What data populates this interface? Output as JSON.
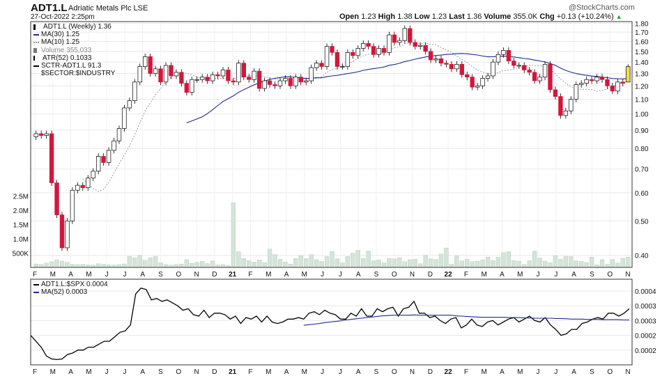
{
  "header": {
    "symbol": "ADT1.L",
    "company": "Adriatic Metals Plc LSE",
    "date": "27-Oct-2022 2:25pm",
    "quote": {
      "open_label": "Open",
      "open": "1.23",
      "high_label": "High",
      "high": "1.38",
      "low_label": "Low",
      "low": "1.23",
      "last_label": "Last",
      "last": "1.36",
      "volume_label": "Volume",
      "volume": "355.0K",
      "chg_label": "Chg",
      "chg": "+0.13 (+10.24%)"
    },
    "brand": "@StockCharts.com"
  },
  "legend_main": [
    {
      "text": "ADT1.L (Weekly) 1.36",
      "swatch": "candle"
    },
    {
      "text": "MA(30) 1.25",
      "swatch": "line-navy"
    },
    {
      "text": "MA(10) 1.25",
      "swatch": "dotted-gray"
    },
    {
      "text": "Volume 355,033",
      "swatch": "volume"
    },
    {
      "text": "ATR(52) 0.1033",
      "swatch": "bar"
    },
    {
      "text": "SCTR-ADT1.L 91.3",
      "swatch": "line-black"
    },
    {
      "text": "$SECTOR:$INDUSTRY",
      "swatch": "none"
    }
  ],
  "legend_lower": [
    {
      "text": "ADT1.L:$SPX 0.0004",
      "swatch": "line-black"
    },
    {
      "text": "MA(52) 0.0003",
      "swatch": "line-navy"
    }
  ],
  "colors": {
    "up": "#ffffff",
    "down": "#d4163c",
    "last": "#f5dc4a",
    "ma30": "#1f2a8a",
    "ma10": "#9e9e9e",
    "volume": "#d4e4d8",
    "volume_stroke": "#9fbfa8",
    "grid": "#e8e8e8",
    "frame": "#333333",
    "ratio": "#000000"
  },
  "chart_data": [
    {
      "type": "candlestick",
      "title": "ADT1.L (Weekly)",
      "y_scale": "log",
      "ylim": [
        0.37,
        1.82
      ],
      "y_ticks": [
        "1.80",
        "1.70",
        "1.60",
        "1.50",
        "1.40",
        "1.30",
        "1.20",
        "1.10",
        "1.00",
        "0.90",
        "0.80",
        "0.70",
        "0.60",
        "0.50",
        "0.40"
      ],
      "volume_ticks": [
        "2.5M",
        "2.0M",
        "1.5M",
        "1.0M",
        "500K"
      ],
      "x_ticks": [
        "F",
        "M",
        "A",
        "M",
        "J",
        "J",
        "A",
        "S",
        "O",
        "N",
        "D",
        "21",
        "F",
        "M",
        "A",
        "M",
        "J",
        "J",
        "A",
        "S",
        "O",
        "N",
        "D",
        "22",
        "F",
        "M",
        "A",
        "M",
        "J",
        "J",
        "A",
        "S",
        "O",
        "N"
      ],
      "closes": [
        0.88,
        0.87,
        0.88,
        0.64,
        0.52,
        0.42,
        0.5,
        0.61,
        0.63,
        0.62,
        0.66,
        0.69,
        0.76,
        0.73,
        0.79,
        0.84,
        0.91,
        1.04,
        1.09,
        1.23,
        1.36,
        1.45,
        1.3,
        1.34,
        1.23,
        1.37,
        1.28,
        1.31,
        1.22,
        1.15,
        1.25,
        1.25,
        1.27,
        1.24,
        1.29,
        1.28,
        1.33,
        1.24,
        1.23,
        1.39,
        1.27,
        1.25,
        1.32,
        1.18,
        1.24,
        1.21,
        1.2,
        1.24,
        1.26,
        1.2,
        1.27,
        1.23,
        1.24,
        1.35,
        1.39,
        1.36,
        1.55,
        1.49,
        1.36,
        1.36,
        1.49,
        1.46,
        1.53,
        1.58,
        1.55,
        1.47,
        1.53,
        1.49,
        1.67,
        1.59,
        1.61,
        1.74,
        1.59,
        1.55,
        1.56,
        1.5,
        1.42,
        1.43,
        1.39,
        1.38,
        1.34,
        1.38,
        1.29,
        1.27,
        1.19,
        1.2,
        1.26,
        1.28,
        1.4,
        1.47,
        1.51,
        1.41,
        1.37,
        1.37,
        1.33,
        1.31,
        1.24,
        1.27,
        1.38,
        1.17,
        1.12,
        0.99,
        1.02,
        1.1,
        1.21,
        1.22,
        1.25,
        1.24,
        1.27,
        1.25,
        1.2,
        1.16,
        1.23,
        1.22,
        1.36
      ],
      "volume_millions": [
        0.12,
        0.1,
        0.15,
        0.2,
        0.27,
        0.22,
        0.18,
        0.11,
        0.1,
        0.11,
        0.09,
        0.08,
        0.13,
        0.11,
        0.09,
        0.08,
        0.1,
        0.12,
        0.39,
        0.34,
        0.42,
        0.25,
        0.34,
        0.39,
        0.16,
        0.1,
        0.08,
        0.1,
        0.12,
        0.27,
        0.14,
        0.18,
        0.21,
        0.13,
        0.23,
        0.09,
        0.1,
        0.07,
        2.26,
        0.55,
        0.31,
        0.24,
        0.19,
        0.26,
        0.17,
        0.64,
        0.45,
        0.29,
        0.19,
        0.12,
        0.31,
        0.41,
        0.31,
        0.45,
        0.27,
        0.21,
        0.38,
        0.56,
        0.3,
        0.16,
        0.38,
        0.5,
        0.6,
        0.31,
        0.57,
        0.23,
        0.26,
        0.16,
        0.31,
        0.3,
        0.34,
        0.2,
        0.27,
        0.29,
        0.13,
        0.42,
        0.3,
        0.28,
        0.47,
        0.68,
        0.11,
        0.41,
        0.23,
        0.29,
        0.2,
        0.22,
        0.26,
        0.36,
        0.24,
        0.36,
        0.52,
        0.55,
        0.24,
        0.22,
        0.1,
        0.24,
        0.57,
        0.33,
        0.22,
        0.16,
        0.41,
        0.29,
        0.39,
        0.38,
        0.23,
        0.21,
        0.17,
        0.36,
        0.09,
        0.27,
        0.11,
        0.28,
        0.15,
        0.32,
        0.36
      ]
    },
    {
      "type": "line",
      "title": "ADT1.L:$SPX",
      "ylim": [
        0.00015,
        0.00044
      ],
      "y_ticks": [
        "0.0004",
        "0.0003",
        "0.0003",
        "0.0002",
        "0.0002"
      ],
      "series": [
        {
          "name": "ADT1.L:$SPX",
          "values": [
            0.00025,
            0.00023,
            0.00021,
            0.00018,
            0.00017,
            0.000168,
            0.00017,
            0.000185,
            0.00019,
            0.0002,
            0.0002,
            0.00021,
            0.00021,
            0.00022,
            0.00023,
            0.00023,
            0.000245,
            0.00026,
            0.000265,
            0.000285,
            0.00039,
            0.00041,
            0.000405,
            0.00037,
            0.000375,
            0.000365,
            0.00037,
            0.00036,
            0.00035,
            0.000335,
            0.00034,
            0.00032,
            0.000315,
            0.000335,
            0.00031,
            0.000325,
            0.000325,
            0.00032,
            0.000305,
            0.000315,
            0.00029,
            0.00031,
            0.000305,
            0.000315,
            0.000295,
            0.000315,
            0.000295,
            0.00029,
            0.000295,
            0.000305,
            0.000305,
            0.00031,
            0.000305,
            0.000325,
            0.00033,
            0.00032,
            0.000335,
            0.000325,
            0.00032,
            0.000305,
            0.000305,
            0.000325,
            0.000315,
            0.00034,
            0.000315,
            0.000315,
            0.00034,
            0.00033,
            0.00034,
            0.000345,
            0.000315,
            0.00034,
            0.000345,
            0.000365,
            0.000325,
            0.000325,
            0.00031,
            0.000315,
            0.0003,
            0.00029,
            0.000305,
            0.00031,
            0.000275,
            0.000285,
            0.000305,
            0.000285,
            0.00028,
            0.000295,
            0.0003,
            0.000285,
            0.000295,
            0.000305,
            0.00031,
            0.000295,
            0.000305,
            0.000315,
            0.0003,
            0.000295,
            0.00031,
            0.000285,
            0.00027,
            0.00025,
            0.000255,
            0.00027,
            0.00027,
            0.00029,
            0.000295,
            0.000305,
            0.00031,
            0.000305,
            0.000325,
            0.000325,
            0.000315,
            0.000325,
            0.00034
          ]
        },
        {
          "name": "MA(52)",
          "values": [
            0.000284,
            0.000286,
            0.000288,
            0.00029,
            0.000293,
            0.000295,
            0.000297,
            0.000299,
            0.000302,
            0.000304,
            0.000306,
            0.000308,
            0.00031,
            0.000312,
            0.000314,
            0.000316,
            0.000317,
            0.000318,
            0.000318,
            0.000318,
            0.000318,
            0.000319,
            0.000318,
            0.000318,
            0.000318,
            0.000318,
            0.000318,
            0.000318,
            0.000318,
            0.000316,
            0.000315,
            0.000314,
            0.000313,
            0.000312,
            0.000311,
            0.000311,
            0.000311,
            0.000311,
            0.000311,
            0.00031,
            0.00031,
            0.00031,
            0.000309,
            0.000309,
            0.000308,
            0.000308,
            0.000308,
            0.000308,
            0.000307,
            0.000307,
            0.000306,
            0.000305,
            0.000305,
            0.000305,
            0.000304,
            0.000304,
            0.000304,
            0.000303,
            0.000303,
            0.000303,
            0.000303,
            0.000302,
            0.000302
          ]
        }
      ]
    }
  ]
}
